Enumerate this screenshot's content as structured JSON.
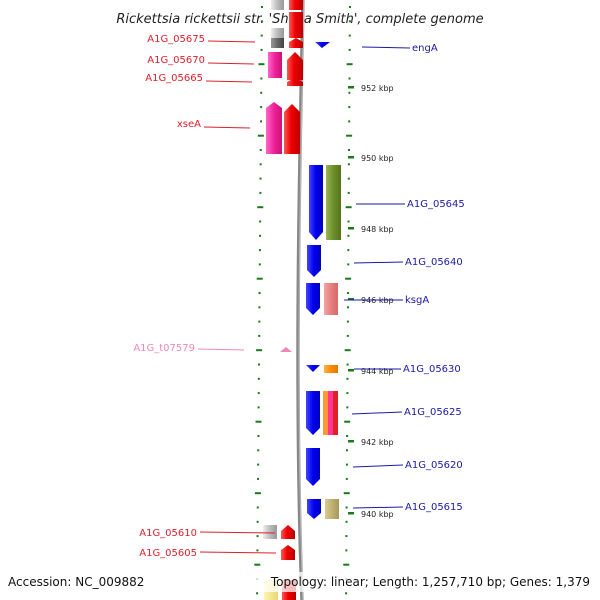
{
  "title": "Rickettsia rickettsii str. 'Sheila Smith', complete genome",
  "accession": "Accession: NC_009882",
  "summary": "Topology: linear; Length: 1,257,710 bp; Genes: 1,379",
  "colors": {
    "left_label": "#dd1f2a",
    "right_label": "#1a1aa6",
    "trna_label": "#ee88bb",
    "axis": "#888888",
    "tick": "#1a7a1a"
  },
  "scale_ticks": [
    {
      "label": "952 kbp"
    },
    {
      "label": "950 kbp"
    },
    {
      "label": "948 kbp"
    },
    {
      "label": "946 kbp"
    },
    {
      "label": "944 kbp"
    },
    {
      "label": "942 kbp"
    },
    {
      "label": "940 kbp"
    }
  ],
  "left_labels": [
    {
      "text": "A1G_05675"
    },
    {
      "text": "A1G_05670"
    },
    {
      "text": "A1G_05665"
    },
    {
      "text": "xseA"
    },
    {
      "text": "A1G_t07579"
    },
    {
      "text": "A1G_05610"
    },
    {
      "text": "A1G_05605"
    }
  ],
  "right_labels": [
    {
      "text": "engA"
    },
    {
      "text": "A1G_05645"
    },
    {
      "text": "A1G_05640"
    },
    {
      "text": "ksgA"
    },
    {
      "text": "A1G_05630"
    },
    {
      "text": "A1G_05625"
    },
    {
      "text": "A1G_05620"
    },
    {
      "text": "A1G_05615"
    }
  ]
}
